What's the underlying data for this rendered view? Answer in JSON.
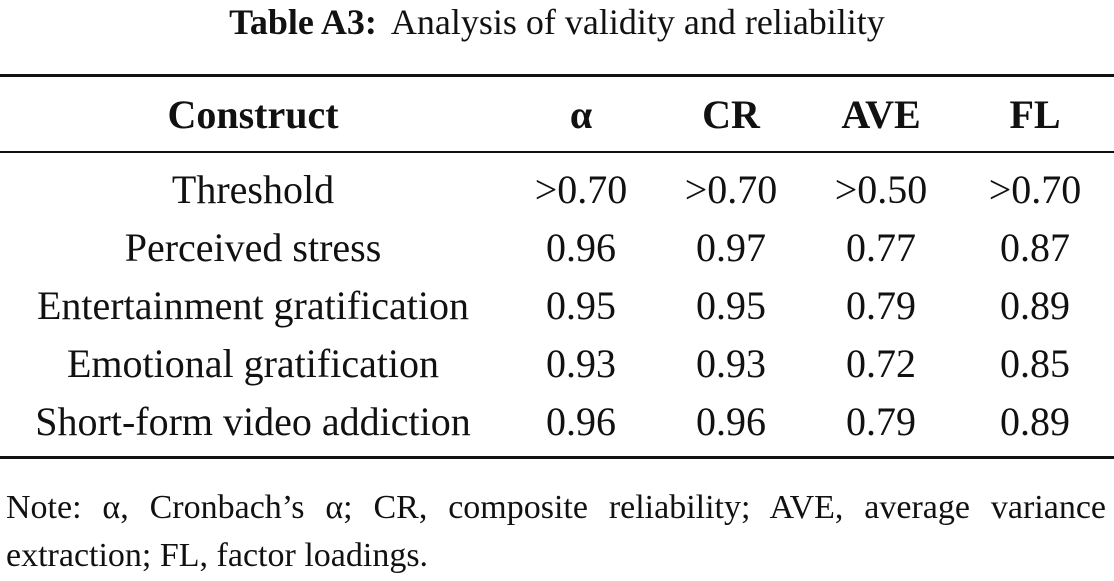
{
  "caption": {
    "label": "Table A3:",
    "text": "Analysis of validity and reliability"
  },
  "table": {
    "headers": [
      "Construct",
      "α",
      "CR",
      "AVE",
      "FL"
    ],
    "rows": [
      {
        "construct": "Threshold",
        "alpha": ">0.70",
        "cr": ">0.70",
        "ave": ">0.50",
        "fl": ">0.70"
      },
      {
        "construct": "Perceived stress",
        "alpha": "0.96",
        "cr": "0.97",
        "ave": "0.77",
        "fl": "0.87"
      },
      {
        "construct": "Entertainment gratification",
        "alpha": "0.95",
        "cr": "0.95",
        "ave": "0.79",
        "fl": "0.89"
      },
      {
        "construct": "Emotional gratification",
        "alpha": "0.93",
        "cr": "0.93",
        "ave": "0.72",
        "fl": "0.85"
      },
      {
        "construct": "Short-form video addiction",
        "alpha": "0.96",
        "cr": "0.96",
        "ave": "0.79",
        "fl": "0.89"
      }
    ]
  },
  "note": "Note: α, Cronbach’s α; CR, composite reliability; AVE, average variance extraction; FL, factor loadings."
}
